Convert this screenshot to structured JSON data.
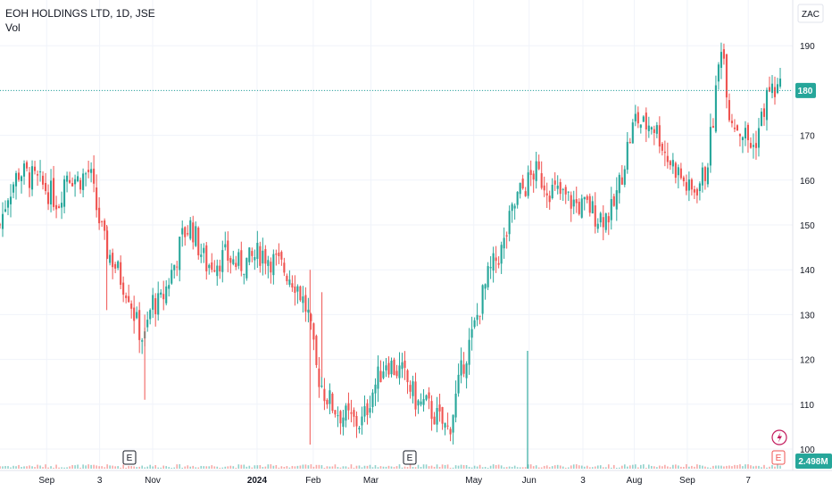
{
  "header": {
    "title": "EOH HOLDINGS LTD, 1D, JSE",
    "vol_label": "Vol"
  },
  "price_axis": {
    "currency": "ZAC"
  },
  "current_price_label": "180",
  "volume_label": "2.498M",
  "events": [
    {
      "label": "E",
      "date": "Oct 2023"
    },
    {
      "label": "E",
      "date": "Mar 2024"
    },
    {
      "label": "E",
      "date": "Oct 2024"
    }
  ],
  "colors": {
    "up": "#26a69a",
    "down": "#ef5350",
    "grid": "#f0f3fa",
    "axis_text": "#131722",
    "price_line": "#26a69a"
  },
  "chart_data": {
    "type": "candlestick",
    "title": "EOH HOLDINGS LTD, 1D, JSE",
    "y_ticks": [
      100,
      110,
      120,
      130,
      140,
      150,
      160,
      170,
      180,
      190
    ],
    "ylim": [
      98,
      198
    ],
    "x_ticks": [
      "Sep",
      "3",
      "Nov",
      "2024",
      "Feb",
      "Mar",
      "May",
      "Jun",
      "3",
      "Aug",
      "Sep",
      "7"
    ],
    "x_tick_positions": [
      0.059,
      0.126,
      0.193,
      0.325,
      0.396,
      0.469,
      0.599,
      0.669,
      0.737,
      0.802,
      0.869,
      0.946
    ],
    "current_price": 180,
    "volume_last": "2.498M",
    "volume_spike": {
      "x": 0.667,
      "value_relative": 0.85
    },
    "close_path": [
      [
        0.0,
        150
      ],
      [
        0.01,
        157
      ],
      [
        0.025,
        162
      ],
      [
        0.045,
        160
      ],
      [
        0.06,
        158
      ],
      [
        0.075,
        155
      ],
      [
        0.085,
        162
      ],
      [
        0.1,
        160
      ],
      [
        0.115,
        162
      ],
      [
        0.122,
        155
      ],
      [
        0.135,
        145
      ],
      [
        0.145,
        142
      ],
      [
        0.155,
        138
      ],
      [
        0.165,
        135
      ],
      [
        0.175,
        128
      ],
      [
        0.185,
        124
      ],
      [
        0.195,
        133
      ],
      [
        0.205,
        132
      ],
      [
        0.215,
        137
      ],
      [
        0.225,
        142
      ],
      [
        0.235,
        148
      ],
      [
        0.245,
        150
      ],
      [
        0.255,
        145
      ],
      [
        0.265,
        141
      ],
      [
        0.275,
        142
      ],
      [
        0.29,
        143
      ],
      [
        0.305,
        141
      ],
      [
        0.32,
        142
      ],
      [
        0.335,
        144
      ],
      [
        0.35,
        142
      ],
      [
        0.365,
        140
      ],
      [
        0.38,
        137
      ],
      [
        0.395,
        130
      ],
      [
        0.405,
        118
      ],
      [
        0.415,
        113
      ],
      [
        0.425,
        110
      ],
      [
        0.435,
        108
      ],
      [
        0.445,
        107
      ],
      [
        0.455,
        106
      ],
      [
        0.465,
        106
      ],
      [
        0.475,
        112
      ],
      [
        0.485,
        116
      ],
      [
        0.495,
        120
      ],
      [
        0.505,
        118
      ],
      [
        0.515,
        117
      ],
      [
        0.525,
        114
      ],
      [
        0.535,
        110
      ],
      [
        0.545,
        110
      ],
      [
        0.555,
        108
      ],
      [
        0.565,
        106
      ],
      [
        0.575,
        104
      ],
      [
        0.585,
        112
      ],
      [
        0.595,
        120
      ],
      [
        0.605,
        125
      ],
      [
        0.615,
        132
      ],
      [
        0.625,
        138
      ],
      [
        0.635,
        142
      ],
      [
        0.645,
        145
      ],
      [
        0.655,
        152
      ],
      [
        0.665,
        157
      ],
      [
        0.675,
        159
      ],
      [
        0.685,
        162
      ],
      [
        0.695,
        160
      ],
      [
        0.705,
        158
      ],
      [
        0.715,
        157
      ],
      [
        0.725,
        156
      ],
      [
        0.735,
        155
      ],
      [
        0.745,
        154
      ],
      [
        0.755,
        154
      ],
      [
        0.765,
        152
      ],
      [
        0.775,
        152
      ],
      [
        0.785,
        153
      ],
      [
        0.795,
        160
      ],
      [
        0.805,
        168
      ],
      [
        0.815,
        174
      ],
      [
        0.825,
        172
      ],
      [
        0.835,
        173
      ],
      [
        0.845,
        170
      ],
      [
        0.855,
        165
      ],
      [
        0.865,
        163
      ],
      [
        0.875,
        160
      ],
      [
        0.885,
        157
      ],
      [
        0.895,
        159
      ],
      [
        0.905,
        162
      ],
      [
        0.915,
        175
      ],
      [
        0.925,
        192
      ],
      [
        0.935,
        175
      ],
      [
        0.945,
        172
      ],
      [
        0.955,
        170
      ],
      [
        0.965,
        167
      ],
      [
        0.975,
        173
      ],
      [
        0.985,
        180
      ]
    ]
  }
}
